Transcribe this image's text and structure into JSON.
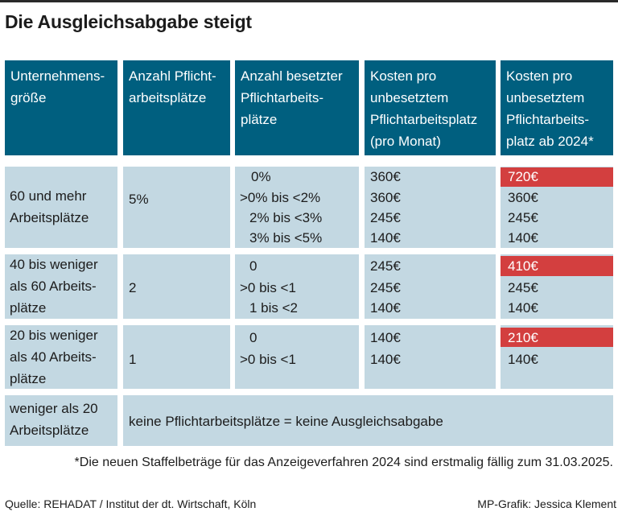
{
  "title": "Die Ausgleichsabgabe steigt",
  "headers": [
    [
      "Unternehmens-",
      "größe"
    ],
    [
      "Anzahl Pflicht-",
      "arbeitsplätze"
    ],
    [
      "Anzahl besetzter",
      "Pflichtarbeits-",
      "plätze"
    ],
    [
      "Kosten pro",
      "unbesetztem",
      "Pflichtarbeitsplatz",
      "(pro Monat)"
    ],
    [
      "Kosten pro",
      "unbesetztem",
      "Pflichtarbeits-",
      "platz ab 2024*"
    ]
  ],
  "groups": [
    {
      "size": [
        "60 und mehr",
        "Arbeitsplätze"
      ],
      "pflicht": "5%",
      "rows": [
        {
          "besetzt": "0%",
          "cost": "360€",
          "cost2024": "720€"
        },
        {
          "besetzt": ">0% bis <2%",
          "cost": "360€",
          "cost2024": "360€"
        },
        {
          "besetzt": "2% bis <3%",
          "cost": "245€",
          "cost2024": "245€"
        },
        {
          "besetzt": "3% bis <5%",
          "cost": "140€",
          "cost2024": "140€"
        }
      ]
    },
    {
      "size": [
        "40 bis weniger",
        "als 60 Arbeits-",
        "plätze"
      ],
      "pflicht": "2",
      "rows": [
        {
          "besetzt": "0",
          "cost": "245€",
          "cost2024": "410€"
        },
        {
          "besetzt": ">0 bis <1",
          "cost": "245€",
          "cost2024": "245€"
        },
        {
          "besetzt": "1 bis <2",
          "cost": "140€",
          "cost2024": "140€"
        }
      ]
    },
    {
      "size": [
        "20 bis weniger",
        "als 40 Arbeits-",
        "plätze"
      ],
      "pflicht": "1",
      "rows": [
        {
          "besetzt": "0",
          "cost": "140€",
          "cost2024": "210€"
        },
        {
          "besetzt": ">0 bis <1",
          "cost": "140€",
          "cost2024": "140€"
        }
      ]
    }
  ],
  "small": {
    "size": [
      "weniger als 20",
      "Arbeitsplätze"
    ],
    "note": "keine Pflichtarbeitsplätze = keine Ausgleichsabgabe"
  },
  "footnote": "*Die neuen Staffelbeträge für das Anzeigeverfahren 2024 sind erstmalig fällig zum 31.03.2025.",
  "source": "Quelle: REHADAT / Institut der dt. Wirtschaft, Köln",
  "credit": "MP-Grafik: Jessica Klement",
  "colors": {
    "header": "#005f7f",
    "body": "#c3d8e2",
    "highlight": "#d33f3f"
  }
}
